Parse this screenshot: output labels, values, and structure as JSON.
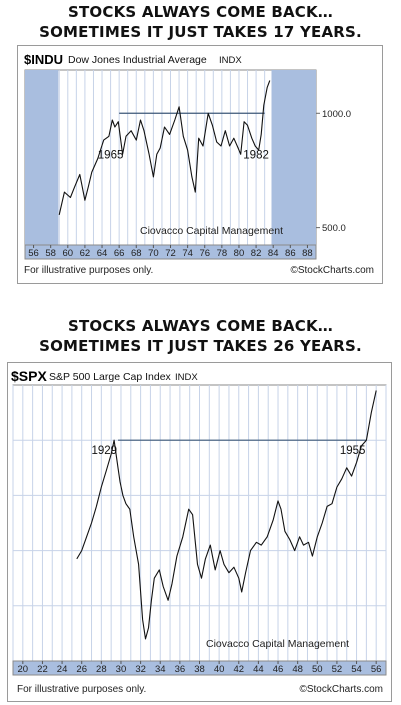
{
  "panels": [
    {
      "headline": [
        "STOCKS ALWAYS COME BACK…",
        "SOMETIMES IT JUST TAKES 17 YEARS."
      ],
      "symbol": "$INDU",
      "name": "Dow Jones Industrial Average",
      "exchange": "INDX",
      "watermark": "Ciovacco Capital Management",
      "footer_left": "For illustrative purposes only.",
      "footer_right": "©StockCharts.com",
      "chart_data": {
        "type": "line",
        "x_ticks": [
          "56",
          "58",
          "60",
          "62",
          "64",
          "66",
          "68",
          "70",
          "72",
          "74",
          "76",
          "78",
          "80",
          "82",
          "84",
          "86",
          "88"
        ],
        "x_range": [
          1955,
          1989
        ],
        "shaded_before": 1958.9,
        "shaded_after": 1983.8,
        "y_scale": "log",
        "y_ticks": [
          {
            "value": 1000,
            "label": "1000.0"
          },
          {
            "value": 500,
            "label": "500.0"
          }
        ],
        "ylim": [
          450,
          1300
        ],
        "ceiling": {
          "value": 1000,
          "x_start": 1966,
          "x_end": 1983
        },
        "annotations": [
          {
            "text": "1965",
            "x": 1965,
            "y": 760
          },
          {
            "text": "1982",
            "x": 1982,
            "y": 760
          }
        ],
        "series": [
          {
            "x": [
              1959,
              1959.6,
              1960.3,
              1960.8,
              1961.4,
              1962,
              1962.4,
              1962.8,
              1963.5,
              1964.2,
              1964.8,
              1965.2,
              1965.5,
              1965.9,
              1966.4,
              1966.8,
              1967.4,
              1968,
              1968.5,
              1968.9,
              1969.5,
              1970,
              1970.4,
              1970.8,
              1971.3,
              1971.9,
              1972.5,
              1973,
              1973.5,
              1974,
              1974.5,
              1974.9,
              1975.3,
              1975.8,
              1976.4,
              1976.9,
              1977.4,
              1977.9,
              1978.4,
              1978.9,
              1979.4,
              1979.9,
              1980.2,
              1980.6,
              1981,
              1981.5,
              1981.9,
              1982.3,
              1982.6,
              1982.9,
              1983.3,
              1983.6
            ],
            "y": [
              540,
              620,
              600,
              640,
              690,
              590,
              640,
              700,
              760,
              850,
              870,
              960,
              920,
              950,
              780,
              870,
              900,
              850,
              960,
              900,
              780,
              680,
              780,
              810,
              920,
              880,
              960,
              1040,
              870,
              800,
              680,
              620,
              860,
              820,
              1000,
              930,
              840,
              820,
              900,
              820,
              860,
              810,
              780,
              950,
              930,
              860,
              820,
              800,
              880,
              1050,
              1170,
              1220
            ]
          }
        ]
      }
    },
    {
      "headline": [
        "STOCKS ALWAYS COME BACK…",
        "SOMETIMES IT JUST TAKES 26 YEARS."
      ],
      "symbol": "$SPX",
      "name": "S&P 500 Large Cap Index",
      "exchange": "INDX",
      "watermark": "Ciovacco Capital Management",
      "footer_left": "For illustrative purposes only.",
      "footer_right": "©StockCharts.com",
      "chart_data": {
        "type": "line",
        "x_ticks": [
          "20",
          "22",
          "24",
          "26",
          "28",
          "30",
          "32",
          "34",
          "36",
          "38",
          "40",
          "42",
          "44",
          "46",
          "48",
          "50",
          "52",
          "54",
          "56"
        ],
        "x_range": [
          1919,
          1957
        ],
        "y_scale": "linear",
        "ylim": [
          0,
          100
        ],
        "ceiling": {
          "value": 80,
          "x_start": 1929.7,
          "x_end": 1955
        },
        "annotations": [
          {
            "text": "1929",
            "x": 1928.3,
            "y": 75
          },
          {
            "text": "1955",
            "x": 1953.6,
            "y": 75
          }
        ],
        "series": [
          {
            "x": [
              1925.5,
              1926,
              1926.5,
              1927,
              1927.5,
              1928,
              1928.5,
              1929,
              1929.3,
              1929.7,
              1929.9,
              1930.2,
              1930.5,
              1930.9,
              1931.3,
              1931.8,
              1932.2,
              1932.5,
              1932.8,
              1933.1,
              1933.4,
              1933.9,
              1934.3,
              1934.8,
              1935.2,
              1935.7,
              1936.3,
              1936.9,
              1937.3,
              1937.8,
              1938.2,
              1938.6,
              1939.1,
              1939.6,
              1940.1,
              1940.5,
              1941,
              1941.5,
              1942,
              1942.3,
              1942.7,
              1943.2,
              1943.8,
              1944.3,
              1944.9,
              1945.5,
              1946,
              1946.3,
              1946.7,
              1947.2,
              1947.7,
              1948.2,
              1948.6,
              1949.1,
              1949.5,
              1950,
              1950.5,
              1951,
              1951.5,
              1952,
              1952.5,
              1953,
              1953.5,
              1954,
              1954.5,
              1955,
              1955.5,
              1956
            ],
            "y": [
              37,
              40,
              45,
              50,
              56,
              63,
              69,
              75,
              80,
              70,
              65,
              60,
              57,
              55,
              45,
              35,
              15,
              8,
              12,
              22,
              30,
              33,
              27,
              22,
              28,
              38,
              45,
              55,
              53,
              35,
              30,
              37,
              42,
              33,
              40,
              35,
              32,
              34,
              30,
              25,
              32,
              40,
              43,
              42,
              45,
              51,
              58,
              55,
              47,
              44,
              40,
              45,
              42,
              43,
              38,
              45,
              50,
              56,
              57,
              63,
              66,
              70,
              67,
              72,
              78,
              80,
              90,
              98
            ]
          }
        ]
      }
    }
  ]
}
